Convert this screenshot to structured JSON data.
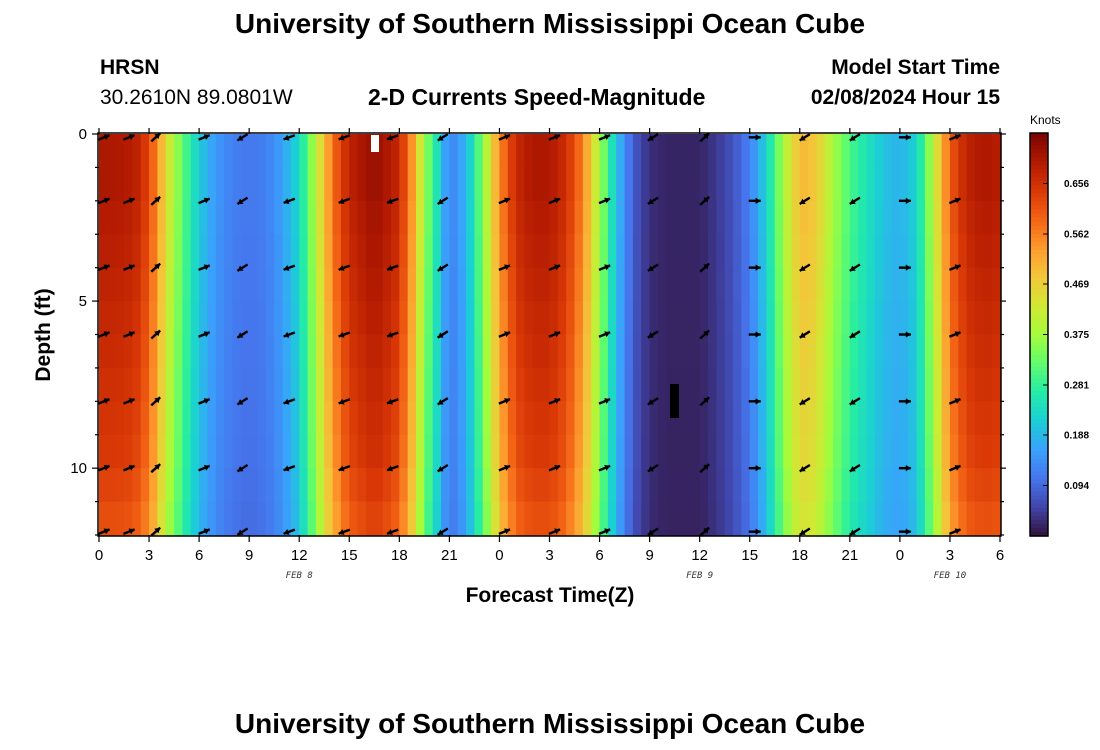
{
  "header": {
    "title": "University of Southern Mississippi Ocean Cube",
    "station": "HRSN",
    "coords": "30.2610N  89.0801W",
    "subtitle": "2-D Currents Speed-Magnitude",
    "model_label": "Model Start Time",
    "model_time": "02/08/2024 Hour 15"
  },
  "footer": {
    "title": "University of Southern Mississippi Ocean Cube"
  },
  "colors": {
    "palette": [
      "#30123b",
      "#4145ab",
      "#4675ed",
      "#39a2fc",
      "#1bcfd4",
      "#24eca6",
      "#61fc6c",
      "#a4fc3b",
      "#d1e834",
      "#f3c63a",
      "#fe9b2d",
      "#f36315",
      "#d93806",
      "#b11901",
      "#7a0402"
    ]
  },
  "chart_data": {
    "type": "heatmap",
    "title": "2-D Currents Speed-Magnitude",
    "xlabel": "Forecast Time(Z)",
    "ylabel": "Depth (ft)",
    "colorbar_label": "Knots",
    "x_range": [
      0,
      54
    ],
    "y_range": [
      0,
      12
    ],
    "y_inverted": true,
    "x_ticks": [
      0,
      3,
      6,
      9,
      12,
      15,
      18,
      21,
      24,
      27,
      30,
      33,
      36,
      39,
      42,
      45,
      48,
      51,
      54
    ],
    "x_tick_labels": [
      "0",
      "3",
      "6",
      "9",
      "12",
      "15",
      "18",
      "21",
      "0",
      "3",
      "6",
      "9",
      "12",
      "15",
      "18",
      "21",
      "0",
      "3",
      "6"
    ],
    "y_ticks": [
      0,
      5,
      10
    ],
    "y_tick_labels": [
      "0",
      "5",
      "10"
    ],
    "date_labels": [
      {
        "x": 12,
        "text": "FEB 8"
      },
      {
        "x": 36,
        "text": "FEB 9"
      },
      {
        "x": 51,
        "text": "FEB 10"
      }
    ],
    "colorbar_range": [
      0,
      0.75
    ],
    "colorbar_ticks": [
      0.094,
      0.188,
      0.281,
      0.375,
      0.469,
      0.562,
      0.656
    ],
    "colorbar_tick_labels": [
      "0.094",
      "0.188",
      "0.281",
      "0.375",
      "0.469",
      "0.562",
      "0.656"
    ],
    "speed_profile": {
      "x": [
        0,
        1,
        2,
        2.5,
        3,
        3.5,
        4,
        5,
        6,
        7,
        8,
        9,
        10,
        11,
        12,
        13,
        14,
        15,
        16,
        16.5,
        17,
        18,
        19,
        19.5,
        20,
        20.5,
        21,
        22,
        23,
        24,
        25,
        26,
        27,
        28,
        29,
        30,
        31,
        32,
        33,
        34,
        35,
        36,
        37,
        38,
        39,
        40,
        41,
        42,
        43,
        44,
        45,
        46,
        47,
        48,
        49,
        50,
        51,
        52,
        53,
        54
      ],
      "speed": [
        0.7,
        0.7,
        0.69,
        0.67,
        0.62,
        0.55,
        0.45,
        0.32,
        0.21,
        0.15,
        0.12,
        0.11,
        0.12,
        0.16,
        0.23,
        0.4,
        0.58,
        0.68,
        0.71,
        0.72,
        0.71,
        0.67,
        0.5,
        0.36,
        0.3,
        0.2,
        0.12,
        0.18,
        0.35,
        0.55,
        0.67,
        0.7,
        0.7,
        0.66,
        0.56,
        0.38,
        0.2,
        0.08,
        0.03,
        0.02,
        0.02,
        0.02,
        0.04,
        0.07,
        0.12,
        0.22,
        0.38,
        0.5,
        0.48,
        0.38,
        0.3,
        0.25,
        0.2,
        0.18,
        0.22,
        0.4,
        0.6,
        0.68,
        0.7,
        0.69
      ]
    },
    "depth_factor": [
      1.0,
      1.0,
      0.99,
      0.98,
      0.97,
      0.96,
      0.95,
      0.94,
      0.93,
      0.92,
      0.9,
      0.88
    ],
    "vector_rows": [
      0.1,
      2,
      4,
      6,
      8,
      10,
      11.9
    ],
    "vector_columns": [
      {
        "x": 0.3,
        "dir": "ENE"
      },
      {
        "x": 1.8,
        "dir": "ENE"
      },
      {
        "x": 3.4,
        "dir": "NE"
      },
      {
        "x": 6.3,
        "dir": "ENE"
      },
      {
        "x": 8.6,
        "dir": "SW"
      },
      {
        "x": 11.4,
        "dir": "WSW"
      },
      {
        "x": 14.7,
        "dir": "WSW"
      },
      {
        "x": 17.6,
        "dir": "WSW"
      },
      {
        "x": 20.6,
        "dir": "SW"
      },
      {
        "x": 24.3,
        "dir": "ENE"
      },
      {
        "x": 27.3,
        "dir": "ENE"
      },
      {
        "x": 30.3,
        "dir": "ENE"
      },
      {
        "x": 33.2,
        "dir": "SW"
      },
      {
        "x": 36.3,
        "dir": "NE"
      },
      {
        "x": 39.3,
        "dir": "E"
      },
      {
        "x": 42.3,
        "dir": "SW"
      },
      {
        "x": 45.3,
        "dir": "SW"
      },
      {
        "x": 48.3,
        "dir": "E"
      },
      {
        "x": 51.3,
        "dir": "ENE"
      }
    ]
  }
}
